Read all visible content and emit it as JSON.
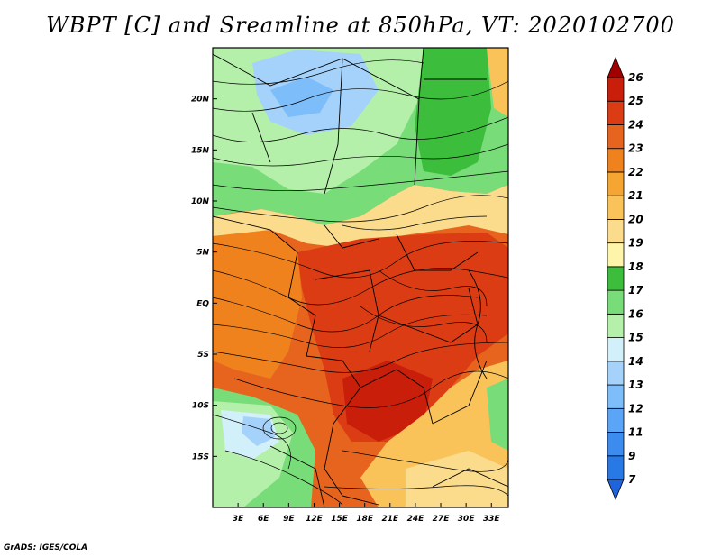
{
  "title": "WBPT [C] and Sreamline at 850hPa, VT: 2020102700",
  "credit": "GrADS: IGES/COLA",
  "map": {
    "lon_labels": [
      "3E",
      "6E",
      "9E",
      "12E",
      "15E",
      "18E",
      "21E",
      "24E",
      "27E",
      "30E",
      "33E"
    ],
    "lat_labels": [
      "20N",
      "15N",
      "10N",
      "5N",
      "EQ",
      "5S",
      "10S",
      "15S"
    ],
    "lon_range": [
      0,
      35
    ],
    "lat_range": [
      -20,
      25
    ]
  },
  "colorbar": {
    "labels": [
      "7",
      "9",
      "11",
      "12",
      "13",
      "14",
      "15",
      "16",
      "17",
      "18",
      "19",
      "20",
      "21",
      "22",
      "23",
      "24",
      "25",
      "26"
    ],
    "colors": [
      "#1e64dc",
      "#2878e6",
      "#3c8cf0",
      "#5aa5f5",
      "#7dbdfa",
      "#a5d2fa",
      "#d2f0fa",
      "#b4f0aa",
      "#78dc78",
      "#3cbe3c",
      "#fff5aa",
      "#fadc8c",
      "#fac35a",
      "#f5a532",
      "#f0821e",
      "#e6641e",
      "#dc3c14",
      "#c81e0a",
      "#a00000"
    ]
  }
}
